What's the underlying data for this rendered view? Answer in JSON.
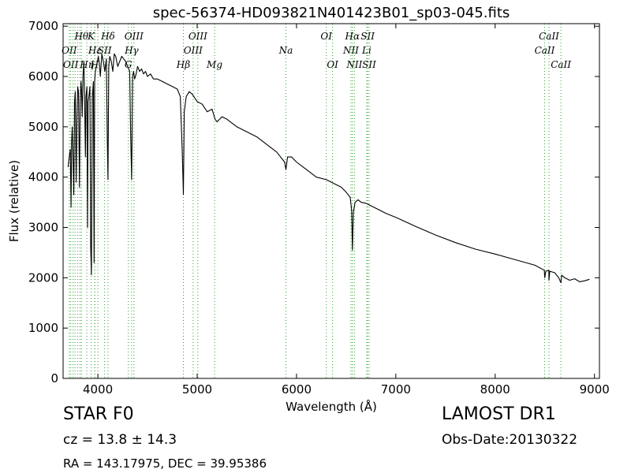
{
  "chart_data": {
    "type": "line",
    "title": "spec-56374-HD093821N401423B01_sp03-045.fits",
    "xlabel": "Wavelength (Å)",
    "ylabel": "Flux (relative)",
    "xlim": [
      3650,
      9050
    ],
    "ylim": [
      0,
      7050
    ],
    "xticks": [
      4000,
      5000,
      6000,
      7000,
      8000,
      9000
    ],
    "yticks": [
      0,
      1000,
      2000,
      3000,
      4000,
      5000,
      6000,
      7000
    ],
    "grid": false,
    "series": [
      {
        "x": [
          3700,
          3712,
          3722,
          3730,
          3736,
          3742,
          3750,
          3758,
          3765,
          3772,
          3782,
          3790,
          3797,
          3805,
          3815,
          3822,
          3830,
          3835,
          3842,
          3850,
          3860,
          3868,
          3875,
          3880,
          3890,
          3896,
          3902,
          3910,
          3920,
          3928,
          3935,
          3945,
          3955,
          3962,
          3968,
          3975,
          3985,
          3995,
          4005,
          4015,
          4025,
          4040,
          4055,
          4070,
          4085,
          4095,
          4102,
          4110,
          4120,
          4135,
          4150,
          4165,
          4180,
          4200,
          4220,
          4240,
          4260,
          4280,
          4300,
          4320,
          4330,
          4340,
          4350,
          4360,
          4370,
          4385,
          4400,
          4420,
          4440,
          4460,
          4480,
          4500,
          4530,
          4560,
          4600,
          4650,
          4700,
          4750,
          4800,
          4830,
          4850,
          4861,
          4870,
          4890,
          4920,
          4950,
          5000,
          5050,
          5100,
          5150,
          5180,
          5200,
          5250,
          5300,
          5400,
          5500,
          5600,
          5700,
          5800,
          5880,
          5893,
          5910,
          5950,
          6000,
          6100,
          6200,
          6300,
          6400,
          6450,
          6500,
          6540,
          6555,
          6563,
          6572,
          6590,
          6620,
          6650,
          6700,
          6800,
          6900,
          7000,
          7200,
          7400,
          7600,
          7800,
          8000,
          8200,
          8400,
          8495,
          8500,
          8510,
          8540,
          8542,
          8550,
          8600,
          8640,
          8662,
          8670,
          8700,
          8750,
          8800,
          8850,
          8900,
          8950
        ],
        "values": [
          4200,
          4400,
          4550,
          3400,
          4700,
          5000,
          4400,
          3650,
          5500,
          5700,
          3900,
          5200,
          5800,
          5700,
          3800,
          5500,
          5900,
          5750,
          5200,
          6000,
          6300,
          5300,
          4400,
          5600,
          5800,
          3000,
          5500,
          5600,
          5800,
          2600,
          2060,
          5600,
          5900,
          2300,
          5900,
          6100,
          6200,
          6300,
          6400,
          6250,
          6000,
          6450,
          6300,
          6100,
          6350,
          4800,
          3950,
          6200,
          6400,
          6300,
          6100,
          6450,
          6400,
          6200,
          6300,
          6400,
          6350,
          6300,
          6200,
          6100,
          4900,
          3950,
          6000,
          6100,
          5950,
          6050,
          6200,
          6100,
          6150,
          6050,
          6100,
          6000,
          6050,
          5950,
          5950,
          5900,
          5850,
          5800,
          5750,
          5600,
          4500,
          3650,
          5300,
          5600,
          5700,
          5650,
          5500,
          5450,
          5300,
          5350,
          5150,
          5100,
          5200,
          5150,
          5000,
          4900,
          4800,
          4650,
          4500,
          4300,
          4150,
          4400,
          4400,
          4300,
          4150,
          4000,
          3950,
          3850,
          3800,
          3700,
          3600,
          3350,
          2550,
          3300,
          3500,
          3550,
          3500,
          3480,
          3380,
          3280,
          3200,
          3020,
          2850,
          2700,
          2570,
          2470,
          2360,
          2250,
          2150,
          2000,
          2130,
          2150,
          1950,
          2130,
          2100,
          2000,
          1900,
          2050,
          2000,
          1950,
          1980,
          1920,
          1940,
          1970
        ]
      }
    ],
    "lines": [
      {
        "x": 3712,
        "label": "OII",
        "row": 1
      },
      {
        "x": 3727,
        "label": "OII",
        "row": 2
      },
      {
        "x": 3750,
        "label": "",
        "row": 0
      },
      {
        "x": 3770,
        "label": "",
        "row": 0
      },
      {
        "x": 3798,
        "label": "",
        "row": 0
      },
      {
        "x": 3820,
        "label": "",
        "row": 0
      },
      {
        "x": 3835,
        "label": "Hθ",
        "row": 0
      },
      {
        "x": 3889,
        "label": "Hη",
        "row": 2
      },
      {
        "x": 3933,
        "label": "K",
        "row": 0
      },
      {
        "x": 3968,
        "label": "H",
        "row": 2
      },
      {
        "x": 3970,
        "label": "Hε",
        "row": 1
      },
      {
        "x": 4000,
        "label": "",
        "row": 0
      },
      {
        "x": 4068,
        "label": "SII",
        "row": 1
      },
      {
        "x": 4102,
        "label": "Hδ",
        "row": 0
      },
      {
        "x": 4307,
        "label": "G",
        "row": 2
      },
      {
        "x": 4340,
        "label": "Hγ",
        "row": 1
      },
      {
        "x": 4363,
        "label": "OIII",
        "row": 0
      },
      {
        "x": 4861,
        "label": "Hβ",
        "row": 2
      },
      {
        "x": 4959,
        "label": "OIII",
        "row": 1
      },
      {
        "x": 5007,
        "label": "OIII",
        "row": 0
      },
      {
        "x": 5175,
        "label": "Mg",
        "row": 2
      },
      {
        "x": 5893,
        "label": "Na",
        "row": 1
      },
      {
        "x": 6300,
        "label": "OI",
        "row": 0
      },
      {
        "x": 6363,
        "label": "OI",
        "row": 2
      },
      {
        "x": 6548,
        "label": "NII",
        "row": 1
      },
      {
        "x": 6563,
        "label": "Hα",
        "row": 0
      },
      {
        "x": 6583,
        "label": "NII",
        "row": 2
      },
      {
        "x": 6707,
        "label": "Li",
        "row": 1
      },
      {
        "x": 6716,
        "label": "SII",
        "row": 0
      },
      {
        "x": 6731,
        "label": "SII",
        "row": 2
      },
      {
        "x": 8498,
        "label": "CaII",
        "row": 1
      },
      {
        "x": 8542,
        "label": "CaII",
        "row": 0
      },
      {
        "x": 8662,
        "label": "CaII",
        "row": 2
      }
    ],
    "line_color": "#2ca02c",
    "spectrum_color": "#000000"
  },
  "info": {
    "object_class": "STAR   F0",
    "cz": "cz = 13.8 ± 14.3",
    "radec": "RA = 143.17975, DEC = 39.95386",
    "survey": "LAMOST DR1",
    "obs_date": "Obs-Date:20130322"
  }
}
